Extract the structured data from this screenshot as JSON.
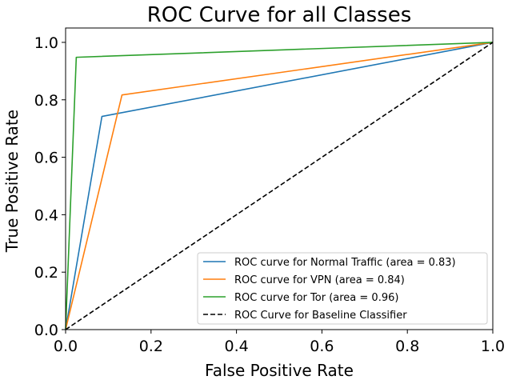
{
  "chart_data": {
    "type": "line",
    "title": "ROC Curve for all Classes",
    "xlabel": "False Positive Rate",
    "ylabel": "True Positive Rate",
    "xlim": [
      0,
      1
    ],
    "ylim": [
      0,
      1.05
    ],
    "x_ticks": [
      "0.0",
      "0.2",
      "0.4",
      "0.6",
      "0.8",
      "1.0"
    ],
    "y_ticks": [
      "0.0",
      "0.2",
      "0.4",
      "0.6",
      "0.8",
      "1.0"
    ],
    "grid": false,
    "legend_position": "bottom-right",
    "series": [
      {
        "name": "ROC curve for Normal Traffic (area = 0.83)",
        "color": "#1f77b4",
        "style": "solid",
        "x": [
          0,
          0.085,
          1
        ],
        "y": [
          0,
          0.742,
          1
        ]
      },
      {
        "name": "ROC curve for VPN (area = 0.84)",
        "color": "#ff7f0e",
        "style": "solid",
        "x": [
          0,
          0.132,
          1
        ],
        "y": [
          0,
          0.817,
          1
        ]
      },
      {
        "name": "ROC curve for Tor (area = 0.96)",
        "color": "#2ca02c",
        "style": "solid",
        "x": [
          0,
          0.025,
          1
        ],
        "y": [
          0,
          0.948,
          1
        ]
      },
      {
        "name": "ROC Curve for Baseline Classifier",
        "color": "#000000",
        "style": "dashed",
        "x": [
          0,
          1
        ],
        "y": [
          0,
          1
        ]
      }
    ]
  }
}
